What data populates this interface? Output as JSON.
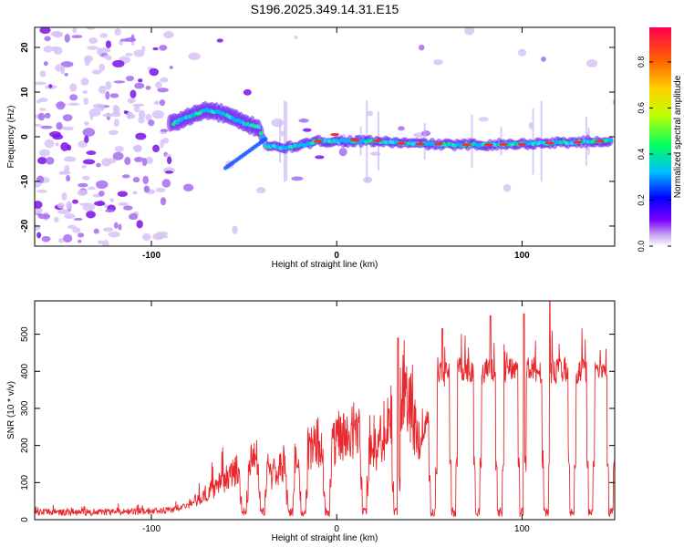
{
  "title": "S196.2025.349.14.31.E15",
  "chart_data": [
    {
      "type": "heatmap",
      "name": "spectrogram",
      "xlabel": "Height of straight line (km)",
      "ylabel": "Frequency (Hz)",
      "xlim": [
        -163,
        150
      ],
      "ylim": [
        -24.5,
        24.5
      ],
      "xticks": [
        -100,
        0,
        100
      ],
      "xtick_labels": [
        "-100",
        "0",
        "100"
      ],
      "yticks": [
        -20,
        -10,
        0,
        10,
        20
      ],
      "ytick_labels": [
        "-20",
        "-10",
        "0",
        "10",
        "20"
      ],
      "ridge": {
        "description": "main spectral ridge (frequency in Hz vs height in km)",
        "x": [
          -88,
          -80,
          -70,
          -60,
          -50,
          -42,
          -38,
          -30,
          -20,
          -10,
          0,
          10,
          20,
          40,
          60,
          80,
          100,
          120,
          145
        ],
        "y": [
          3,
          4.5,
          6,
          5,
          3,
          2,
          -2,
          -2.5,
          -2,
          -1,
          -1,
          -1,
          -1,
          -1.5,
          -1.8,
          -1.8,
          -1.6,
          -1.3,
          -1
        ]
      },
      "colorbar": {
        "label": "Normalized spectral amplitude",
        "range": [
          0,
          0.95
        ],
        "ticks": [
          0.0,
          0.2,
          0.4,
          0.6,
          0.8
        ],
        "tick_labels": [
          "0.0",
          "0.2",
          "0.4",
          "0.6",
          "0.8"
        ],
        "colors": [
          "#ffffff",
          "#7b00ff",
          "#0000ff",
          "#00c0ff",
          "#00ff60",
          "#c0ff00",
          "#ffd000",
          "#ff6000",
          "#ff0040"
        ]
      }
    },
    {
      "type": "line",
      "name": "snr",
      "xlabel": "Height of straight line (km)",
      "ylabel": "SNR (10 * v/v)",
      "xlim": [
        -163,
        150
      ],
      "ylim": [
        0,
        590
      ],
      "xticks": [
        -100,
        0,
        100
      ],
      "xtick_labels": [
        "-100",
        "0",
        "100"
      ],
      "yticks": [
        0,
        100,
        200,
        300,
        400,
        500
      ],
      "ytick_labels": [
        "0",
        "100",
        "200",
        "300",
        "400",
        "500"
      ],
      "color": "#e8282c",
      "envelope": {
        "x": [
          -163,
          -120,
          -90,
          -80,
          -70,
          -60,
          -50,
          -40,
          -35,
          -25,
          -15,
          -5,
          5,
          15,
          20,
          30,
          35,
          40,
          45,
          55,
          65,
          80,
          100,
          115,
          130,
          150
        ],
        "y": [
          20,
          20,
          25,
          40,
          70,
          110,
          150,
          170,
          120,
          160,
          190,
          200,
          230,
          260,
          180,
          280,
          330,
          300,
          200,
          390,
          400,
          400,
          400,
          405,
          400,
          395
        ]
      },
      "dropouts": [
        -50,
        -40,
        -25,
        -18,
        -5,
        15,
        32,
        52,
        63,
        76,
        88,
        100,
        113,
        127,
        137,
        148
      ],
      "peaks": [
        {
          "x": 33,
          "y": 490
        },
        {
          "x": 57,
          "y": 515
        },
        {
          "x": 83,
          "y": 550
        },
        {
          "x": 101,
          "y": 555
        },
        {
          "x": 115,
          "y": 590
        }
      ]
    }
  ]
}
